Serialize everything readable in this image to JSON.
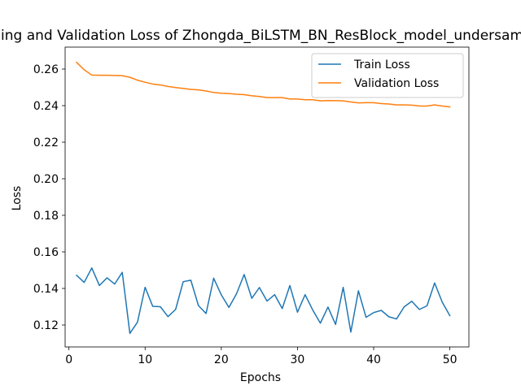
{
  "chart_data": {
    "type": "line",
    "title": "Training and Validation Loss of Zhongda_BiLSTM_BN_ResBlock_model_undersampled",
    "xlabel": "Epochs",
    "ylabel": "Loss",
    "xlim": [
      -0.5,
      52.5
    ],
    "ylim": [
      0.108,
      0.272
    ],
    "xticks": [
      0,
      10,
      20,
      30,
      40,
      50
    ],
    "yticks": [
      0.12,
      0.14,
      0.16,
      0.18,
      0.2,
      0.22,
      0.24,
      0.26
    ],
    "xtick_labels": [
      "0",
      "10",
      "20",
      "30",
      "40",
      "50"
    ],
    "ytick_labels": [
      "0.12",
      "0.14",
      "0.16",
      "0.18",
      "0.20",
      "0.22",
      "0.24",
      "0.26"
    ],
    "grid": false,
    "legend_position": "upper right",
    "x": [
      1,
      2,
      3,
      4,
      5,
      6,
      7,
      8,
      9,
      10,
      11,
      12,
      13,
      14,
      15,
      16,
      17,
      18,
      19,
      20,
      21,
      22,
      23,
      24,
      25,
      26,
      27,
      28,
      29,
      30,
      31,
      32,
      33,
      34,
      35,
      36,
      37,
      38,
      39,
      40,
      41,
      42,
      43,
      44,
      45,
      46,
      47,
      48,
      49,
      50
    ],
    "series": [
      {
        "name": "Train Loss",
        "color": "#1f77b4",
        "values": [
          0.1472,
          0.1433,
          0.1512,
          0.1416,
          0.1458,
          0.1424,
          0.1488,
          0.1154,
          0.1216,
          0.1406,
          0.1302,
          0.13,
          0.1246,
          0.1285,
          0.1437,
          0.1445,
          0.1306,
          0.1263,
          0.1456,
          0.1365,
          0.1296,
          0.1371,
          0.1476,
          0.1346,
          0.1405,
          0.1331,
          0.1366,
          0.129,
          0.1416,
          0.127,
          0.1366,
          0.1282,
          0.121,
          0.1298,
          0.1203,
          0.1406,
          0.1161,
          0.1387,
          0.1242,
          0.1268,
          0.128,
          0.1245,
          0.1233,
          0.1299,
          0.133,
          0.1285,
          0.1305,
          0.143,
          0.1325,
          0.1251
        ]
      },
      {
        "name": "Validation Loss",
        "color": "#ff7f0e",
        "values": [
          0.2637,
          0.2596,
          0.2567,
          0.2566,
          0.2566,
          0.2565,
          0.2564,
          0.2555,
          0.2539,
          0.2528,
          0.2518,
          0.2513,
          0.2505,
          0.2499,
          0.2494,
          0.2489,
          0.2486,
          0.248,
          0.2472,
          0.2468,
          0.2466,
          0.2462,
          0.246,
          0.2454,
          0.245,
          0.2444,
          0.2444,
          0.2444,
          0.2436,
          0.2436,
          0.2432,
          0.2432,
          0.2426,
          0.2428,
          0.2427,
          0.2426,
          0.242,
          0.2415,
          0.2416,
          0.2416,
          0.2411,
          0.2409,
          0.2404,
          0.2404,
          0.2403,
          0.2398,
          0.2398,
          0.2404,
          0.2398,
          0.2393
        ]
      }
    ]
  }
}
